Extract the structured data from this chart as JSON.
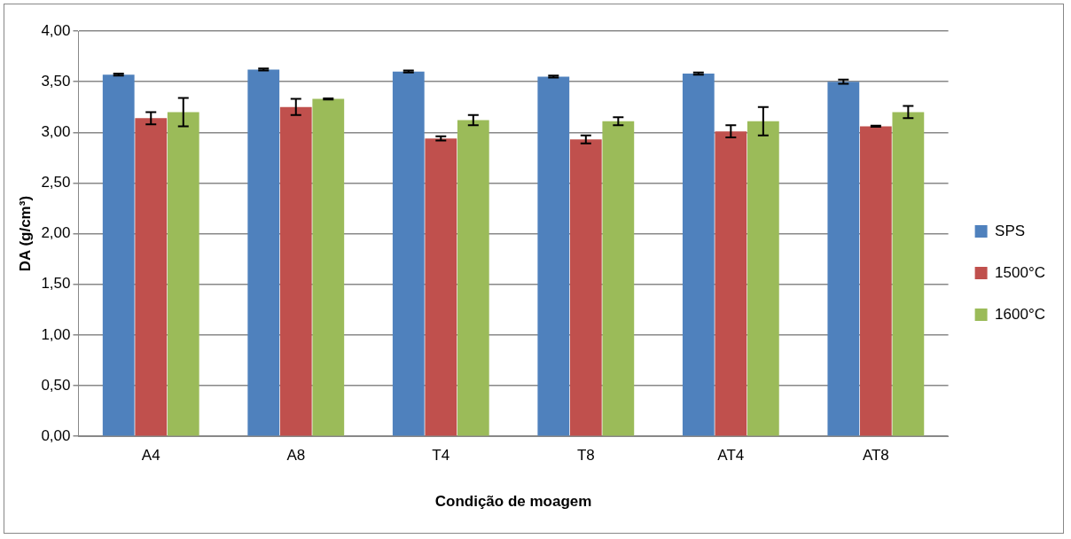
{
  "chart_data": {
    "type": "bar",
    "xlabel": "Condição de moagem",
    "ylabel": "DA (g/cm³)",
    "categories": [
      "A4",
      "A8",
      "T4",
      "T8",
      "AT4",
      "AT8"
    ],
    "series": [
      {
        "name": "SPS",
        "color": "#4f81bd",
        "values": [
          3.57,
          3.62,
          3.6,
          3.55,
          3.58,
          3.5
        ],
        "errors": [
          0.01,
          0.01,
          0.01,
          0.01,
          0.01,
          0.02
        ]
      },
      {
        "name": "1500°C",
        "color": "#c0504d",
        "values": [
          3.14,
          3.25,
          2.94,
          2.93,
          3.01,
          3.06
        ],
        "errors": [
          0.06,
          0.08,
          0.02,
          0.04,
          0.06,
          0.005
        ]
      },
      {
        "name": "1600°C",
        "color": "#9bbb59",
        "values": [
          3.2,
          3.33,
          3.12,
          3.11,
          3.11,
          3.2
        ],
        "errors": [
          0.14,
          0.005,
          0.05,
          0.04,
          0.14,
          0.06
        ]
      }
    ],
    "ylim": [
      0,
      4
    ],
    "yticks": [
      {
        "value": 0,
        "label": "0,00"
      },
      {
        "value": 0.5,
        "label": "0,50"
      },
      {
        "value": 1,
        "label": "1,00"
      },
      {
        "value": 1.5,
        "label": "1,50"
      },
      {
        "value": 2,
        "label": "2,00"
      },
      {
        "value": 2.5,
        "label": "2,50"
      },
      {
        "value": 3,
        "label": "3,00"
      },
      {
        "value": 3.5,
        "label": "3,50"
      },
      {
        "value": 4,
        "label": "4,00"
      }
    ],
    "grid": "y",
    "legend": "right"
  }
}
